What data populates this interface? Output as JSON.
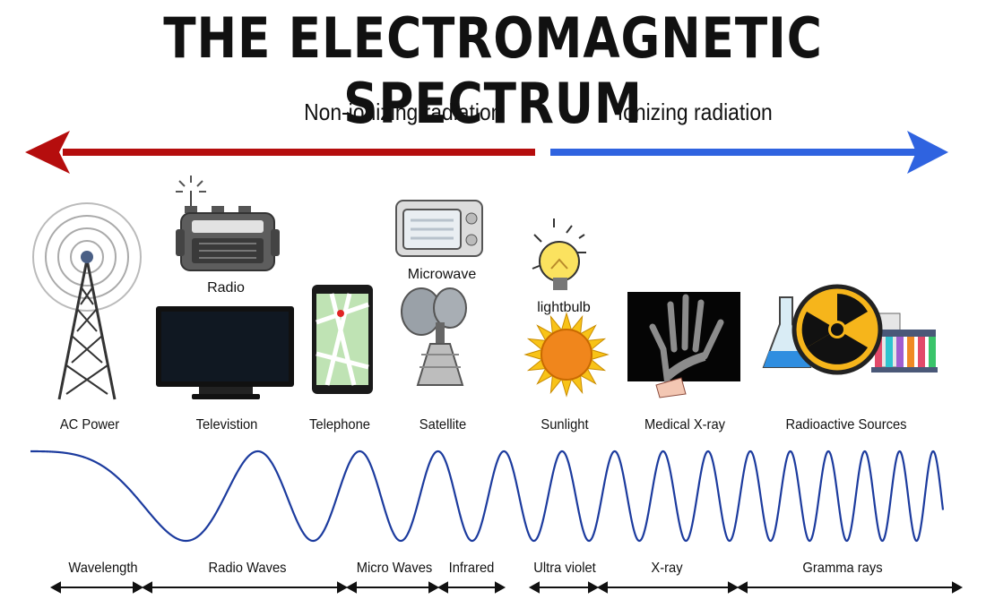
{
  "title": "THE ELECTROMAGNETIC SPECTRUM",
  "radiation": {
    "non_ionizing": "Non-ionizing radiation",
    "ionizing": "Ionizing radiation",
    "non_ionizing_color": "#b50d0d",
    "ionizing_color": "#2f63e0"
  },
  "sources": {
    "radio": "Radio",
    "microwave": "Microwave",
    "lightbulb": "lightbulb"
  },
  "captions": [
    "AC Power",
    "Televistion",
    "Telephone",
    "Satellite",
    "Sunlight",
    "Medical X-ray",
    "Radioactive Sources"
  ],
  "bands": [
    "Wavelength",
    "Radio Waves",
    "Micro Waves",
    "Infrared",
    "Ultra violet",
    "X-ray",
    "Gramma rays"
  ],
  "wave_color": "#1c3b9e"
}
